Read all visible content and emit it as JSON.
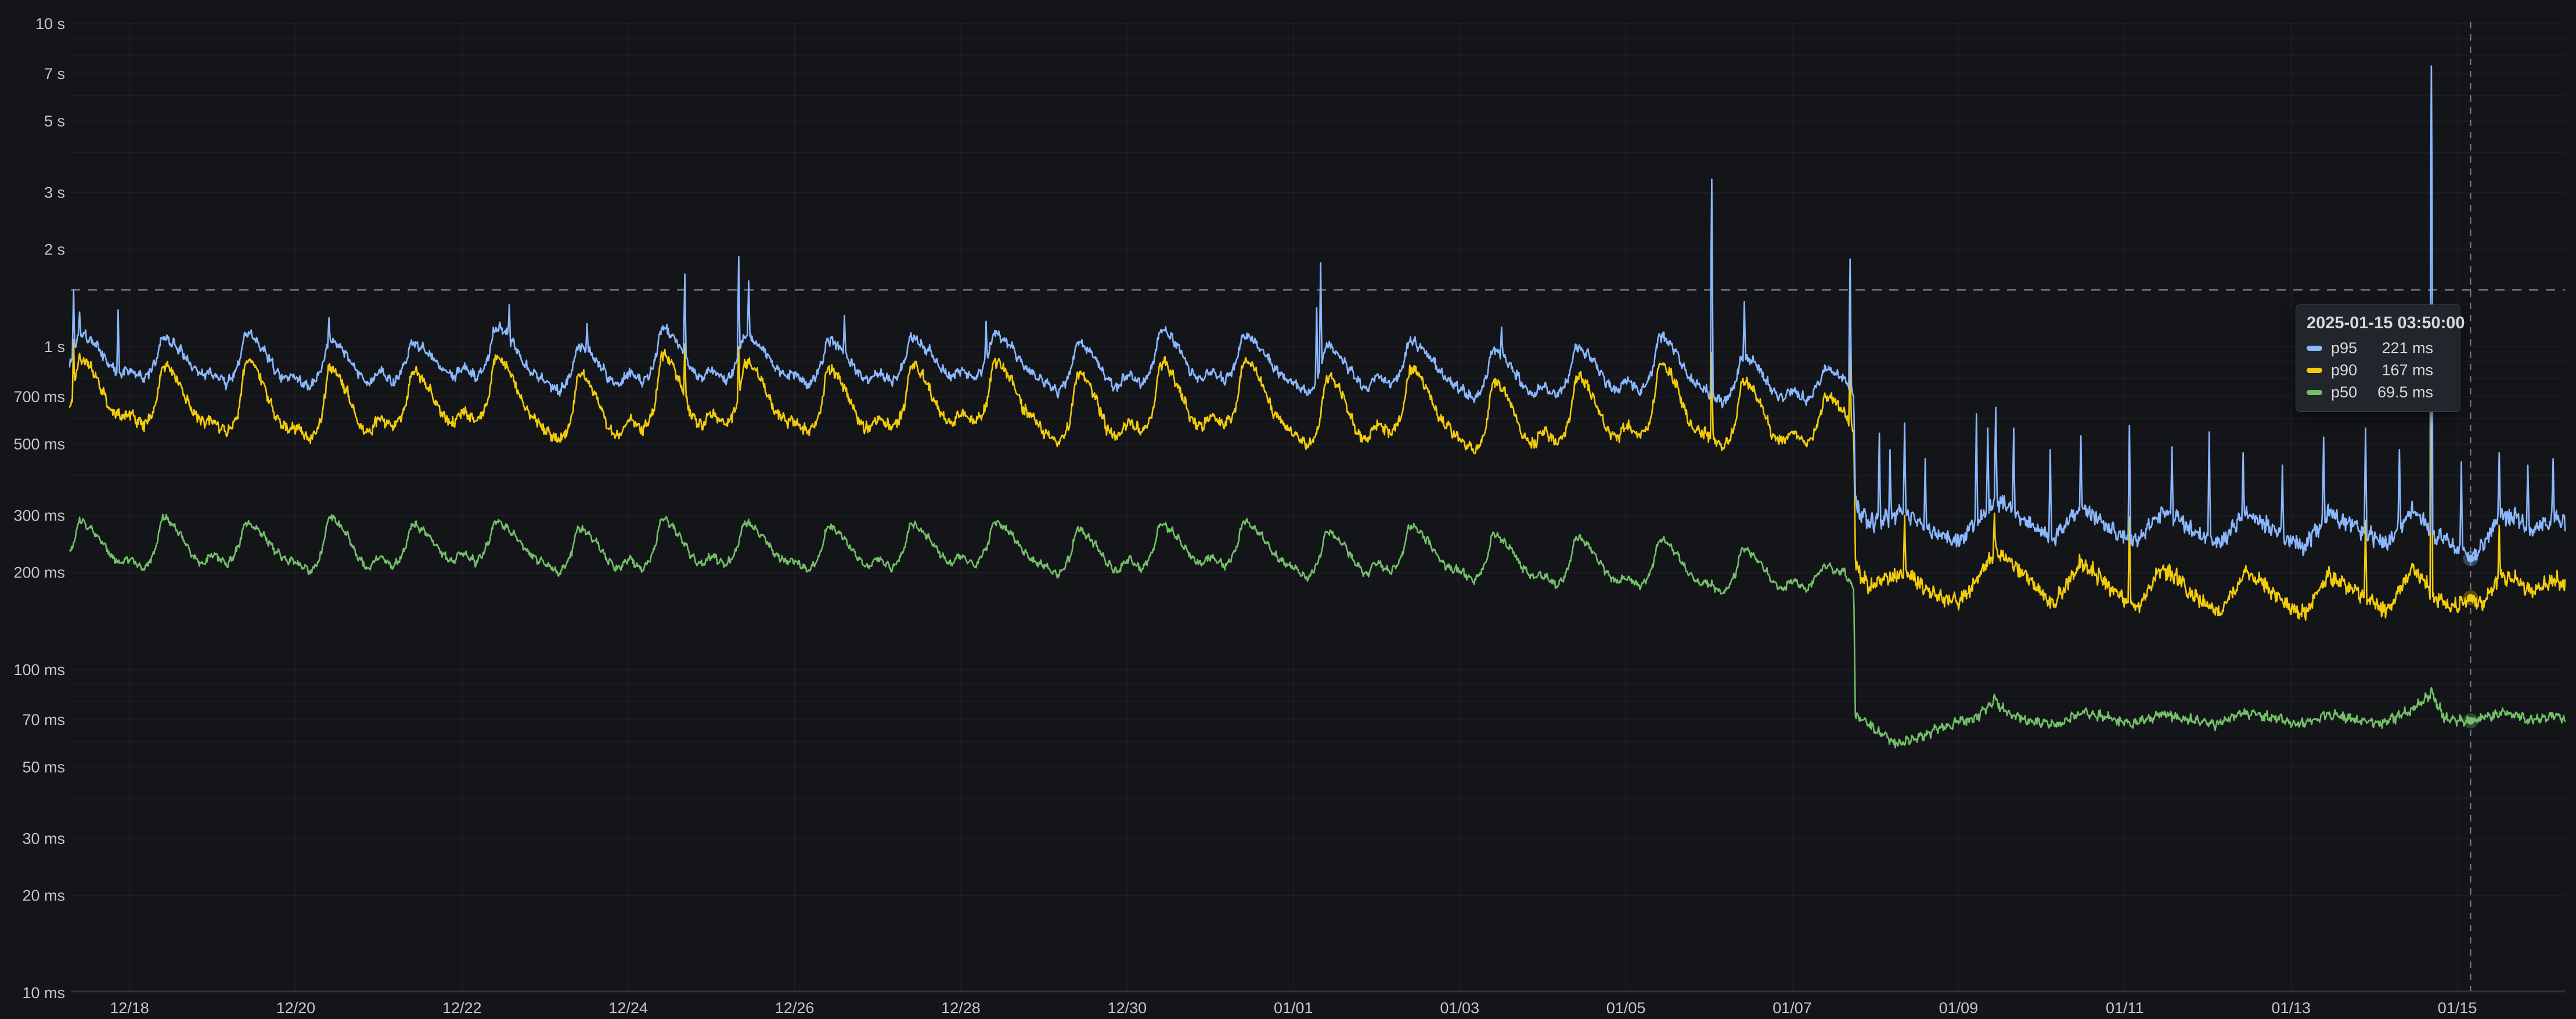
{
  "colors": {
    "background": "#141519",
    "grid": "rgba(201,209,226,0.055)",
    "axis_line": "rgba(201,209,226,0.18)",
    "label": "#c4c6cc",
    "threshold": "#8e9097",
    "crosshair": "#9fa1a9",
    "p95": "#8ab8ff",
    "p90": "#f2cc0c",
    "p50": "#73bf69"
  },
  "tooltip": {
    "title": "2025-01-15 03:50:00",
    "rows": [
      {
        "label": "p95",
        "value": "221 ms",
        "color": "#8ab8ff"
      },
      {
        "label": "p90",
        "value": "167 ms",
        "color": "#f2cc0c"
      },
      {
        "label": "p50",
        "value": "69.5 ms",
        "color": "#73bf69"
      }
    ]
  },
  "chart_data": {
    "type": "line",
    "title": "",
    "xlabel": "",
    "ylabel": "",
    "y_axis": {
      "scale": "log10",
      "unit": "ms",
      "min_ms": 10,
      "max_ms": 10000,
      "ticks": [
        {
          "ms": 10000,
          "label": "10 s"
        },
        {
          "ms": 7000,
          "label": "7 s"
        },
        {
          "ms": 5000,
          "label": "5 s"
        },
        {
          "ms": 3000,
          "label": "3 s"
        },
        {
          "ms": 2000,
          "label": "2 s"
        },
        {
          "ms": 1000,
          "label": "1 s"
        },
        {
          "ms": 700,
          "label": "700 ms"
        },
        {
          "ms": 500,
          "label": "500 ms"
        },
        {
          "ms": 300,
          "label": "300 ms"
        },
        {
          "ms": 200,
          "label": "200 ms"
        },
        {
          "ms": 100,
          "label": "100 ms"
        },
        {
          "ms": 70,
          "label": "70 ms"
        },
        {
          "ms": 50,
          "label": "50 ms"
        },
        {
          "ms": 30,
          "label": "30 ms"
        },
        {
          "ms": 20,
          "label": "20 ms"
        },
        {
          "ms": 10,
          "label": "10 ms"
        }
      ]
    },
    "x_axis": {
      "note_t_units": "days, t=0 is 2024-12-17 00:00",
      "ticks": [
        {
          "t": 1,
          "label": "12/18"
        },
        {
          "t": 3,
          "label": "12/20"
        },
        {
          "t": 5,
          "label": "12/22"
        },
        {
          "t": 7,
          "label": "12/24"
        },
        {
          "t": 9,
          "label": "12/26"
        },
        {
          "t": 11,
          "label": "12/28"
        },
        {
          "t": 13,
          "label": "12/30"
        },
        {
          "t": 15,
          "label": "01/01"
        },
        {
          "t": 17,
          "label": "01/03"
        },
        {
          "t": 19,
          "label": "01/05"
        },
        {
          "t": 21,
          "label": "01/07"
        },
        {
          "t": 23,
          "label": "01/09"
        },
        {
          "t": 25,
          "label": "01/11"
        },
        {
          "t": 27,
          "label": "01/13"
        },
        {
          "t": 29,
          "label": "01/15"
        }
      ],
      "t_start": 0.28,
      "t_end": 30.3
    },
    "threshold_ms": 1500,
    "time_cursor": {
      "t": 29.16,
      "label": "2025-01-15 03:50:00"
    },
    "step_change_t": 21.74,
    "series": [
      {
        "name": "p95",
        "color": "#8ab8ff",
        "hover_ms": 221,
        "noise": [
          0.04,
          0.07
        ],
        "phase1_daily": {
          "highs": [
            1120,
            1080,
            1110,
            1060,
            1040,
            1170,
            1020,
            1160,
            1100,
            1060,
            1080,
            1110,
            1040,
            1150,
            1100,
            1020,
            1060,
            990,
            1010,
            1090,
            950,
            860
          ],
          "lows": [
            800,
            790,
            770,
            745,
            780,
            800,
            730,
            775,
            790,
            760,
            780,
            795,
            725,
            765,
            785,
            715,
            760,
            690,
            705,
            730,
            670,
            680
          ]
        },
        "step_point": [
          21.74,
          720
        ],
        "phase2_points": [
          [
            21.76,
            335
          ],
          [
            21.82,
            300
          ],
          [
            21.95,
            285
          ],
          [
            22.1,
            295
          ],
          [
            22.3,
            305
          ],
          [
            22.45,
            295
          ],
          [
            22.6,
            275
          ],
          [
            22.8,
            262
          ],
          [
            23.0,
            252
          ],
          [
            23.2,
            285
          ],
          [
            23.45,
            335
          ],
          [
            23.6,
            320
          ],
          [
            23.8,
            295
          ],
          [
            23.95,
            272
          ],
          [
            24.15,
            255
          ],
          [
            24.45,
            318
          ],
          [
            24.65,
            300
          ],
          [
            24.9,
            268
          ],
          [
            25.15,
            250
          ],
          [
            25.45,
            312
          ],
          [
            25.65,
            292
          ],
          [
            25.9,
            262
          ],
          [
            26.15,
            246
          ],
          [
            26.45,
            308
          ],
          [
            26.65,
            286
          ],
          [
            26.9,
            258
          ],
          [
            27.15,
            242
          ],
          [
            27.45,
            304
          ],
          [
            27.65,
            286
          ],
          [
            27.95,
            262
          ],
          [
            28.15,
            246
          ],
          [
            28.45,
            312
          ],
          [
            28.6,
            292
          ],
          [
            28.69,
            268
          ],
          [
            28.85,
            252
          ],
          [
            29.0,
            238
          ],
          [
            29.16,
            221
          ],
          [
            29.3,
            242
          ],
          [
            29.5,
            298
          ],
          [
            29.7,
            296
          ],
          [
            29.9,
            272
          ],
          [
            30.05,
            286
          ],
          [
            30.2,
            298
          ],
          [
            30.3,
            282
          ]
        ],
        "spikes": [
          [
            0.33,
            1500
          ],
          [
            0.4,
            1280
          ],
          [
            0.86,
            1300
          ],
          [
            3.4,
            1230
          ],
          [
            5.57,
            1350
          ],
          [
            6.5,
            1180
          ],
          [
            7.68,
            1680
          ],
          [
            8.33,
            1900
          ],
          [
            8.45,
            1600
          ],
          [
            9.6,
            1250
          ],
          [
            11.3,
            1200
          ],
          [
            15.28,
            1320
          ],
          [
            15.33,
            1820
          ],
          [
            17.5,
            1150
          ],
          [
            20.03,
            3300
          ],
          [
            20.42,
            1380
          ],
          [
            21.7,
            1870
          ],
          [
            22.05,
            540
          ],
          [
            22.18,
            480
          ],
          [
            22.35,
            580
          ],
          [
            22.6,
            450
          ],
          [
            23.22,
            620
          ],
          [
            23.35,
            560
          ],
          [
            23.45,
            650
          ],
          [
            23.66,
            560
          ],
          [
            24.1,
            480
          ],
          [
            24.47,
            530
          ],
          [
            25.06,
            570
          ],
          [
            25.57,
            490
          ],
          [
            26.02,
            545
          ],
          [
            26.42,
            470
          ],
          [
            26.9,
            430
          ],
          [
            27.39,
            525
          ],
          [
            27.9,
            560
          ],
          [
            28.3,
            480
          ],
          [
            28.69,
            7400
          ],
          [
            29.05,
            440
          ],
          [
            29.5,
            470
          ],
          [
            29.85,
            430
          ],
          [
            30.15,
            450
          ]
        ]
      },
      {
        "name": "p90",
        "color": "#f2cc0c",
        "hover_ms": 167,
        "noise": [
          0.045,
          0.065
        ],
        "phase1_daily": {
          "highs": [
            930,
            880,
            920,
            870,
            850,
            940,
            830,
            950,
            900,
            860,
            880,
            910,
            840,
            900,
            920,
            820,
            860,
            790,
            810,
            900,
            790,
            710
          ],
          "lows": [
            590,
            570,
            545,
            520,
            560,
            585,
            510,
            555,
            575,
            540,
            560,
            580,
            505,
            545,
            565,
            495,
            540,
            480,
            505,
            530,
            490,
            505
          ]
        },
        "step_point": [
          21.74,
          555
        ],
        "phase2_points": [
          [
            21.76,
            215
          ],
          [
            21.82,
            196
          ],
          [
            21.95,
            182
          ],
          [
            22.1,
            190
          ],
          [
            22.3,
            200
          ],
          [
            22.45,
            194
          ],
          [
            22.6,
            178
          ],
          [
            22.8,
            168
          ],
          [
            23.0,
            161
          ],
          [
            23.2,
            186
          ],
          [
            23.45,
            232
          ],
          [
            23.6,
            218
          ],
          [
            23.8,
            198
          ],
          [
            23.95,
            178
          ],
          [
            24.15,
            160
          ],
          [
            24.45,
            212
          ],
          [
            24.65,
            199
          ],
          [
            24.9,
            172
          ],
          [
            25.15,
            156
          ],
          [
            25.45,
            206
          ],
          [
            25.65,
            191
          ],
          [
            25.9,
            165
          ],
          [
            26.15,
            151
          ],
          [
            26.45,
            201
          ],
          [
            26.65,
            187
          ],
          [
            26.9,
            161
          ],
          [
            27.15,
            149
          ],
          [
            27.45,
            197
          ],
          [
            27.65,
            184
          ],
          [
            27.95,
            164
          ],
          [
            28.15,
            151
          ],
          [
            28.45,
            204
          ],
          [
            28.6,
            190
          ],
          [
            28.69,
            172
          ],
          [
            28.85,
            160
          ],
          [
            29.0,
            158
          ],
          [
            29.16,
            167
          ],
          [
            29.3,
            160
          ],
          [
            29.5,
            192
          ],
          [
            29.7,
            190
          ],
          [
            29.9,
            174
          ],
          [
            30.05,
            184
          ],
          [
            30.2,
            192
          ],
          [
            30.3,
            178
          ]
        ],
        "spikes": [
          [
            0.33,
            1050
          ],
          [
            7.68,
            1020
          ],
          [
            8.33,
            1000
          ],
          [
            20.03,
            960
          ],
          [
            21.7,
            980
          ],
          [
            22.35,
            300
          ],
          [
            23.43,
            305
          ],
          [
            25.06,
            298
          ],
          [
            27.9,
            290
          ],
          [
            28.69,
            1020
          ],
          [
            29.5,
            280
          ]
        ]
      },
      {
        "name": "p50",
        "color": "#73bf69",
        "hover_ms": 69.5,
        "noise": [
          0.028,
          0.035
        ],
        "phase1_daily": {
          "highs": [
            292,
            298,
            288,
            300,
            285,
            292,
            278,
            296,
            288,
            280,
            285,
            290,
            275,
            286,
            292,
            270,
            282,
            265,
            260,
            256,
            240,
            212
          ],
          "lows": [
            208,
            205,
            212,
            200,
            208,
            215,
            198,
            205,
            210,
            202,
            206,
            210,
            195,
            205,
            208,
            192,
            200,
            188,
            182,
            180,
            172,
            176
          ]
        },
        "step_point": [
          21.74,
          180
        ],
        "phase2_points": [
          [
            21.76,
            72
          ],
          [
            21.9,
            68
          ],
          [
            22.05,
            64
          ],
          [
            22.25,
            59
          ],
          [
            22.45,
            61
          ],
          [
            22.7,
            65
          ],
          [
            22.95,
            68
          ],
          [
            23.2,
            71
          ],
          [
            23.43,
            80
          ],
          [
            23.6,
            73
          ],
          [
            23.9,
            69
          ],
          [
            24.2,
            68
          ],
          [
            24.5,
            74
          ],
          [
            24.8,
            71
          ],
          [
            25.1,
            68
          ],
          [
            25.45,
            73
          ],
          [
            25.8,
            70
          ],
          [
            26.1,
            68
          ],
          [
            26.45,
            74
          ],
          [
            26.8,
            71
          ],
          [
            27.1,
            68
          ],
          [
            27.45,
            73
          ],
          [
            27.8,
            70
          ],
          [
            28.1,
            68
          ],
          [
            28.45,
            75
          ],
          [
            28.69,
            84
          ],
          [
            28.85,
            71
          ],
          [
            29.0,
            70
          ],
          [
            29.16,
            69.5
          ],
          [
            29.4,
            72
          ],
          [
            29.6,
            74
          ],
          [
            29.85,
            70
          ],
          [
            30.05,
            71
          ],
          [
            30.2,
            73
          ],
          [
            30.3,
            70
          ]
        ],
        "spikes": [
          [
            23.43,
            84
          ],
          [
            28.69,
            88
          ]
        ]
      }
    ]
  }
}
